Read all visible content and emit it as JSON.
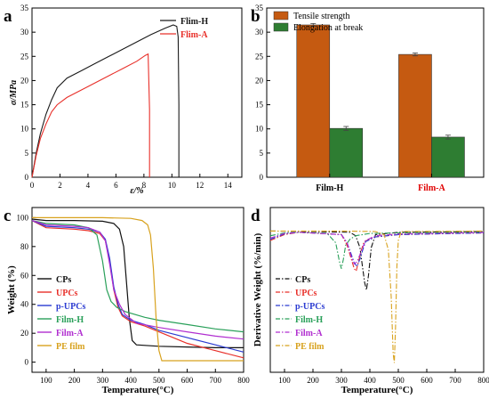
{
  "panel_letters": [
    "a",
    "b",
    "c",
    "d"
  ],
  "chart_data": [
    {
      "panel": "a",
      "type": "line",
      "xlabel": "ε/%",
      "ylabel": "σ/MPa",
      "xlim": [
        0,
        15
      ],
      "ylim": [
        0,
        35
      ],
      "x_ticks": [
        0,
        2,
        4,
        6,
        8,
        10,
        12,
        14
      ],
      "y_ticks": [
        0,
        5,
        10,
        15,
        20,
        25,
        30,
        35
      ],
      "legend_position": "top-right",
      "series": [
        {
          "name": "Flim-H",
          "color": "#1a1a1a",
          "x": [
            0,
            0.3,
            0.6,
            1.0,
            1.4,
            1.8,
            2.5,
            3.5,
            4.5,
            5.5,
            6.5,
            7.5,
            8.5,
            9.5,
            10.1,
            10.35,
            10.45,
            10.5,
            10.5
          ],
          "y": [
            0,
            5,
            9,
            13,
            16,
            18.5,
            20.5,
            22,
            23.5,
            25,
            26.5,
            28,
            29.5,
            30.8,
            31.5,
            31.2,
            29,
            15,
            0
          ]
        },
        {
          "name": "Flim-A",
          "color": "#e8302a",
          "x": [
            0,
            0.3,
            0.6,
            1.0,
            1.4,
            1.8,
            2.5,
            3.5,
            4.5,
            5.5,
            6.5,
            7.5,
            8.1,
            8.3,
            8.4,
            8.4
          ],
          "y": [
            0,
            4.5,
            8,
            11,
            13.5,
            15,
            16.5,
            18,
            19.5,
            21,
            22.5,
            24,
            25.2,
            25.5,
            14,
            0
          ]
        }
      ]
    },
    {
      "panel": "b",
      "type": "bar",
      "categories": [
        "Film-H",
        "Film-A"
      ],
      "category_colors": [
        "#000000",
        "#e00000"
      ],
      "ylim": [
        0,
        35
      ],
      "y_ticks": [
        0,
        5,
        10,
        15,
        20,
        25,
        30,
        35
      ],
      "legend_position": "top-left",
      "series": [
        {
          "name": "Tensile strength",
          "color": "#c55a11",
          "values": [
            31.5,
            25.4
          ],
          "errors": [
            0.3,
            0.3
          ]
        },
        {
          "name": "Elongation at break",
          "color": "#2e7d32",
          "values": [
            10.1,
            8.3
          ],
          "errors": [
            0.4,
            0.4
          ]
        }
      ]
    },
    {
      "panel": "c",
      "type": "line",
      "xlabel": "Temperature(°C)",
      "ylabel": "Weight (%)",
      "xlim": [
        50,
        800
      ],
      "ylim": [
        -7,
        107
      ],
      "x_ticks": [
        100,
        200,
        300,
        400,
        500,
        600,
        700,
        800
      ],
      "y_ticks": [
        0,
        20,
        40,
        60,
        80,
        100
      ],
      "legend_position": "bottom-left",
      "series": [
        {
          "name": "CPs",
          "color": "#111111",
          "x": [
            50,
            100,
            200,
            300,
            340,
            360,
            375,
            385,
            395,
            405,
            420,
            500,
            600,
            700,
            800
          ],
          "y": [
            99,
            98,
            98,
            97.5,
            96,
            92,
            80,
            55,
            30,
            15,
            12,
            11,
            10.5,
            10,
            10
          ]
        },
        {
          "name": "UPCs",
          "color": "#e8302a",
          "x": [
            50,
            100,
            200,
            250,
            290,
            310,
            325,
            340,
            355,
            370,
            400,
            450,
            500,
            600,
            700,
            800
          ],
          "y": [
            98,
            93,
            92,
            91,
            89,
            84,
            70,
            50,
            38,
            32,
            28,
            25,
            21,
            13,
            8,
            3
          ]
        },
        {
          "name": "p-UPCs",
          "color": "#2b3bd1",
          "x": [
            50,
            100,
            200,
            250,
            290,
            310,
            325,
            340,
            355,
            370,
            400,
            450,
            500,
            600,
            700,
            800
          ],
          "y": [
            98,
            94,
            93,
            92,
            90,
            85,
            72,
            52,
            40,
            33,
            29,
            26,
            22,
            17,
            12,
            7
          ]
        },
        {
          "name": "Film-H",
          "color": "#2aa05a",
          "x": [
            50,
            100,
            200,
            250,
            280,
            300,
            315,
            330,
            350,
            380,
            450,
            500,
            600,
            700,
            800
          ],
          "y": [
            98,
            96,
            95,
            93,
            88,
            70,
            50,
            42,
            38,
            35,
            31,
            29,
            26,
            23,
            21
          ]
        },
        {
          "name": "Film-A",
          "color": "#b12fd0",
          "x": [
            50,
            100,
            200,
            250,
            290,
            310,
            325,
            340,
            360,
            380,
            420,
            500,
            600,
            700,
            800
          ],
          "y": [
            98,
            95,
            94,
            93,
            90,
            84,
            68,
            50,
            40,
            33,
            27,
            24,
            21,
            18,
            16
          ]
        },
        {
          "name": "PE film",
          "color": "#d8a21e",
          "x": [
            50,
            100,
            200,
            300,
            400,
            440,
            460,
            470,
            480,
            490,
            500,
            510,
            600,
            700,
            800
          ],
          "y": [
            100,
            100,
            100,
            100,
            99.5,
            98,
            95,
            88,
            65,
            30,
            8,
            1,
            1,
            1,
            1
          ]
        }
      ]
    },
    {
      "panel": "d",
      "type": "line",
      "xlabel": "Temperature(°C)",
      "ylabel": "Derivative Weight (%/min)",
      "xlim": [
        50,
        800
      ],
      "ylim": [
        -6,
        1
      ],
      "x_ticks": [
        100,
        200,
        300,
        400,
        500,
        600,
        700,
        800
      ],
      "legend_position": "bottom-left",
      "series": [
        {
          "name": "CPs",
          "color": "#111111",
          "x": [
            50,
            200,
            330,
            350,
            365,
            375,
            382,
            388,
            395,
            405,
            420,
            500,
            800
          ],
          "y": [
            0,
            -0.02,
            -0.05,
            -0.2,
            -0.7,
            -1.6,
            -2.2,
            -2.5,
            -1.9,
            -0.7,
            -0.15,
            -0.05,
            -0.02
          ]
        },
        {
          "name": "UPCs",
          "color": "#e8302a",
          "x": [
            50,
            100,
            150,
            300,
            320,
            335,
            345,
            352,
            360,
            370,
            380,
            420,
            500,
            800
          ],
          "y": [
            -0.4,
            -0.15,
            -0.05,
            -0.15,
            -0.6,
            -1.2,
            -1.6,
            -1.7,
            -1.3,
            -0.8,
            -0.45,
            -0.25,
            -0.15,
            -0.08
          ]
        },
        {
          "name": "p-UPCs",
          "color": "#2b3bd1",
          "x": [
            50,
            100,
            150,
            300,
            320,
            335,
            345,
            355,
            365,
            375,
            385,
            420,
            500,
            800
          ],
          "y": [
            -0.35,
            -0.12,
            -0.05,
            -0.15,
            -0.5,
            -1.0,
            -1.35,
            -1.5,
            -1.2,
            -0.8,
            -0.45,
            -0.25,
            -0.15,
            -0.08
          ]
        },
        {
          "name": "Film-H",
          "color": "#2aa05a",
          "x": [
            50,
            100,
            150,
            250,
            280,
            293,
            300,
            307,
            315,
            330,
            350,
            400,
            500,
            800
          ],
          "y": [
            -0.2,
            -0.08,
            -0.05,
            -0.1,
            -0.5,
            -1.3,
            -1.6,
            -1.2,
            -0.6,
            -0.35,
            -0.2,
            -0.1,
            -0.08,
            -0.05
          ]
        },
        {
          "name": "Film-A",
          "color": "#b12fd0",
          "x": [
            50,
            100,
            150,
            300,
            320,
            335,
            345,
            355,
            365,
            375,
            385,
            420,
            500,
            800
          ],
          "y": [
            -0.3,
            -0.1,
            -0.05,
            -0.15,
            -0.5,
            -1.1,
            -1.4,
            -1.3,
            -1.0,
            -0.7,
            -0.4,
            -0.2,
            -0.12,
            -0.06
          ]
        },
        {
          "name": "PE film",
          "color": "#d8a21e",
          "x": [
            50,
            300,
            420,
            450,
            465,
            475,
            482,
            486,
            490,
            495,
            500,
            510,
            800
          ],
          "y": [
            0,
            0,
            -0.02,
            -0.15,
            -0.8,
            -2.8,
            -5.2,
            -5.6,
            -4.2,
            -1.5,
            -0.4,
            -0.02,
            0
          ]
        }
      ]
    }
  ]
}
